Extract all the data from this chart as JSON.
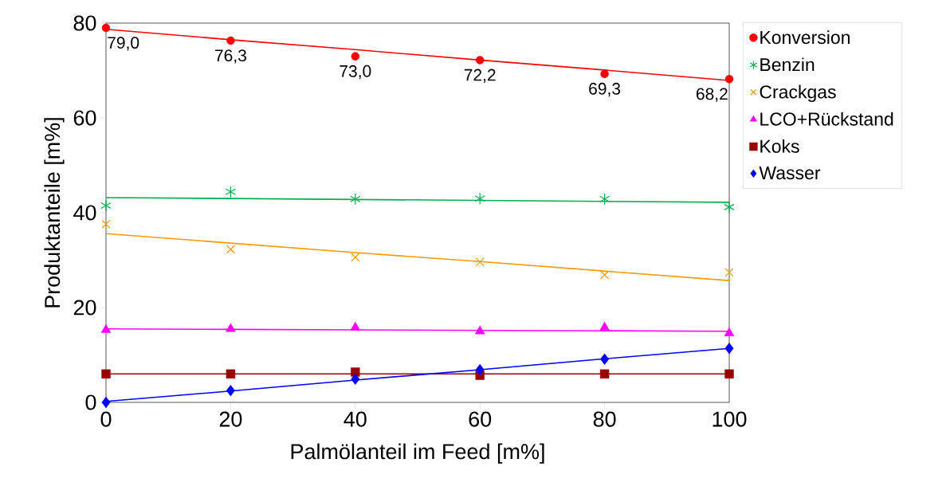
{
  "chart_data": {
    "type": "scatter",
    "xlabel": "Palmölanteil im Feed [m%]",
    "ylabel": "Produktanteile [m%]",
    "x": [
      0,
      20,
      40,
      60,
      80,
      100
    ],
    "xlim": [
      0,
      100
    ],
    "ylim": [
      0,
      80
    ],
    "xticks": [
      0,
      20,
      40,
      60,
      80,
      100
    ],
    "yticks": [
      0,
      20,
      40,
      60,
      80
    ],
    "legend": "right",
    "grid": false,
    "series": [
      {
        "name": "Konversion",
        "color": "#ff0000",
        "marker": "circle",
        "values": [
          79.0,
          76.3,
          73.0,
          72.2,
          69.3,
          68.2
        ],
        "value_labels": [
          "79,0",
          "76,3",
          "73,0",
          "72,2",
          "69,3",
          "68,2"
        ]
      },
      {
        "name": "Benzin",
        "color": "#00b050",
        "values": [
          41.5,
          44.4,
          42.9,
          43.0,
          42.9,
          41.2
        ]
      },
      {
        "name": "Crackgas",
        "color": "#ff9900",
        "marker": "cross",
        "values": [
          37.6,
          32.3,
          30.6,
          29.6,
          26.9,
          27.4
        ]
      },
      {
        "name": "LCO+Rückstand",
        "color": "#ff00ff",
        "marker": "triangle",
        "values": [
          15.3,
          15.5,
          15.8,
          15.0,
          15.8,
          14.6
        ]
      },
      {
        "name": "Koks",
        "color": "#990000",
        "marker": "square",
        "values": [
          6.0,
          6.0,
          6.4,
          5.7,
          6.0,
          6.0
        ]
      },
      {
        "name": "Wasser",
        "color": "#0000ff",
        "marker": "diamond",
        "values": [
          0.0,
          2.5,
          4.9,
          6.9,
          9.1,
          11.4
        ]
      },
      {
        "type": "line",
        "color": "#ff0000",
        "marker": "none",
        "values": [
          78.7,
          76.5,
          74.4,
          72.2,
          70.1,
          67.9
        ]
      },
      {
        "type": "line",
        "color": "#00b050",
        "marker": "none",
        "values": [
          43.2,
          43.0,
          42.8,
          42.6,
          42.4,
          42.2
        ]
      },
      {
        "type": "line",
        "color": "#ff9900",
        "marker": "none",
        "values": [
          35.6,
          33.6,
          31.6,
          29.7,
          27.7,
          25.7
        ]
      },
      {
        "type": "line",
        "color": "#ff00ff",
        "marker": "none",
        "values": [
          15.5,
          15.4,
          15.3,
          15.2,
          15.1,
          15.0
        ]
      },
      {
        "type": "line",
        "color": "#990000",
        "marker": "none",
        "values": [
          6.0,
          6.0,
          6.0,
          6.0,
          6.0,
          6.0
        ]
      },
      {
        "type": "line",
        "color": "#0000ff",
        "marker": "none",
        "values": [
          0.2,
          2.4,
          4.7,
          6.9,
          9.2,
          11.4
        ]
      }
    ]
  }
}
